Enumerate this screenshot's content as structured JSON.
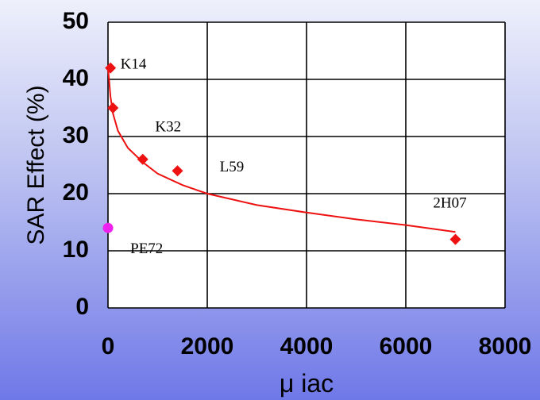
{
  "chart_data": {
    "type": "scatter",
    "xlabel": "μ iac",
    "ylabel": "SAR Effect (%)",
    "xlim": [
      0,
      8000
    ],
    "ylim": [
      0,
      50
    ],
    "x_ticks": [
      "0",
      "2000",
      "4000",
      "6000",
      "8000"
    ],
    "y_ticks": [
      "0",
      "10",
      "20",
      "30",
      "40",
      "50"
    ],
    "grid": true,
    "series": [
      {
        "color": "#ee1111",
        "marker": "diamond",
        "points": [
          {
            "x": 50,
            "y": 42
          },
          {
            "x": 100,
            "y": 35
          },
          {
            "x": 700,
            "y": 26
          },
          {
            "x": 1400,
            "y": 24
          },
          {
            "x": 7000,
            "y": 12
          }
        ]
      },
      {
        "color": "#ee22ee",
        "marker": "circle",
        "points": [
          {
            "x": 0,
            "y": 14
          }
        ]
      }
    ],
    "trendline": {
      "color": "#ee1111",
      "points": [
        [
          0,
          42
        ],
        [
          20,
          40
        ],
        [
          50,
          37
        ],
        [
          100,
          34
        ],
        [
          200,
          31
        ],
        [
          400,
          28
        ],
        [
          700,
          25.5
        ],
        [
          1000,
          23.5
        ],
        [
          1500,
          21.5
        ],
        [
          2000,
          20
        ],
        [
          3000,
          18
        ],
        [
          4000,
          16.7
        ],
        [
          5000,
          15.5
        ],
        [
          6000,
          14.5
        ],
        [
          7000,
          13.3
        ]
      ]
    },
    "annotations": [
      {
        "text": "K14",
        "x": 250,
        "y": 42.5
      },
      {
        "text": "K32",
        "x": 950,
        "y": 31.5
      },
      {
        "text": "L59",
        "x": 2250,
        "y": 24.5
      },
      {
        "text": "2H07",
        "x": 6550,
        "y": 18.2
      },
      {
        "text": "PE72",
        "x": 450,
        "y": 10.2
      }
    ]
  }
}
